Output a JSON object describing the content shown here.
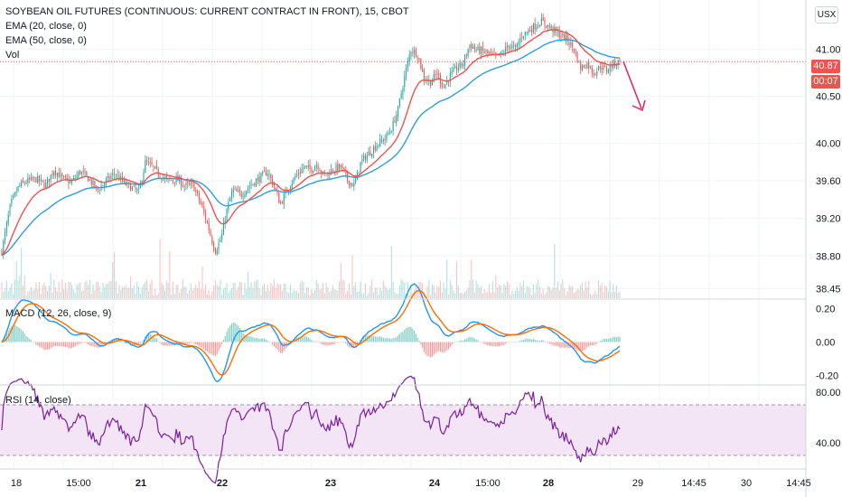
{
  "header": {
    "title": "SOYBEAN OIL FUTURES (CONTINUOUS: CURRENT CONTRACT IN FRONT), 15, CBOT",
    "ema20": "EMA (20, close, 0)",
    "ema50": "EMA (50, close, 0)",
    "vol": "Vol"
  },
  "currency_button": "USX",
  "price_badge": "40.87",
  "countdown_badge": "00:07",
  "colors": {
    "up": "#26a69a",
    "down": "#ef5350",
    "ema20": "#ef5350",
    "ema50": "#2f9ed8",
    "macd": "#2196f3",
    "signal": "#ff6d00",
    "rsi": "#7b1fa2",
    "rsi_band": "#f3e5f5"
  },
  "chart_data": [
    {
      "type": "candlestick",
      "panel": "price",
      "series": [
        {
          "name": "EMA (20, close, 0)"
        },
        {
          "name": "EMA (50, close, 0)"
        },
        {
          "name": "Vol"
        }
      ],
      "y_ticks": [
        "41.00",
        "40.50",
        "40.00",
        "39.60",
        "39.20",
        "38.80",
        "38.45"
      ],
      "y_tick_values": [
        41.0,
        40.5,
        40.0,
        39.6,
        39.2,
        38.8,
        38.45
      ],
      "ylim": [
        38.35,
        41.45
      ],
      "last_price": 40.87,
      "close_path": [
        [
          0,
          38.85
        ],
        [
          8,
          39.35
        ],
        [
          16,
          39.55
        ],
        [
          24,
          39.6
        ],
        [
          32,
          39.62
        ],
        [
          40,
          39.55
        ],
        [
          48,
          39.72
        ],
        [
          56,
          39.62
        ],
        [
          64,
          39.58
        ],
        [
          72,
          39.7
        ],
        [
          80,
          39.62
        ],
        [
          88,
          39.5
        ],
        [
          96,
          39.6
        ],
        [
          104,
          39.68
        ],
        [
          112,
          39.58
        ],
        [
          120,
          39.52
        ],
        [
          126,
          39.48
        ],
        [
          132,
          39.8
        ],
        [
          138,
          39.75
        ],
        [
          144,
          39.68
        ],
        [
          152,
          39.6
        ],
        [
          160,
          39.62
        ],
        [
          168,
          39.55
        ],
        [
          176,
          39.55
        ],
        [
          184,
          39.32
        ],
        [
          190,
          39.1
        ],
        [
          196,
          38.85
        ],
        [
          202,
          39.0
        ],
        [
          206,
          39.25
        ],
        [
          212,
          39.5
        ],
        [
          220,
          39.45
        ],
        [
          228,
          39.55
        ],
        [
          236,
          39.62
        ],
        [
          244,
          39.7
        ],
        [
          250,
          39.55
        ],
        [
          256,
          39.35
        ],
        [
          262,
          39.5
        ],
        [
          270,
          39.65
        ],
        [
          278,
          39.75
        ],
        [
          284,
          39.72
        ],
        [
          290,
          39.78
        ],
        [
          296,
          39.65
        ],
        [
          304,
          39.72
        ],
        [
          312,
          39.75
        ],
        [
          318,
          39.6
        ],
        [
          324,
          39.55
        ],
        [
          330,
          39.8
        ],
        [
          338,
          39.9
        ],
        [
          346,
          40.0
        ],
        [
          352,
          40.05
        ],
        [
          358,
          40.15
        ],
        [
          364,
          40.35
        ],
        [
          370,
          40.7
        ],
        [
          376,
          41.0
        ],
        [
          382,
          40.95
        ],
        [
          388,
          40.7
        ],
        [
          394,
          40.65
        ],
        [
          400,
          40.75
        ],
        [
          406,
          40.6
        ],
        [
          412,
          40.72
        ],
        [
          418,
          40.8
        ],
        [
          424,
          40.85
        ],
        [
          430,
          41.05
        ],
        [
          436,
          41.0
        ],
        [
          442,
          40.98
        ],
        [
          448,
          40.95
        ],
        [
          454,
          40.92
        ],
        [
          460,
          40.95
        ],
        [
          466,
          41.05
        ],
        [
          472,
          41.0
        ],
        [
          478,
          41.15
        ],
        [
          484,
          41.2
        ],
        [
          490,
          41.25
        ],
        [
          496,
          41.3
        ],
        [
          502,
          41.25
        ],
        [
          508,
          41.2
        ],
        [
          514,
          41.15
        ],
        [
          520,
          41.1
        ],
        [
          526,
          41.0
        ],
        [
          532,
          40.8
        ],
        [
          538,
          40.85
        ],
        [
          544,
          40.75
        ],
        [
          550,
          40.82
        ],
        [
          556,
          40.78
        ],
        [
          562,
          40.85
        ],
        [
          568,
          40.87
        ]
      ]
    },
    {
      "type": "line",
      "panel": "macd",
      "series": [
        {
          "name": "MACD (12, 26, close, 9)"
        }
      ],
      "y_ticks": [
        "0.20",
        "0.00",
        "-0.20"
      ],
      "y_tick_values": [
        0.2,
        0.0,
        -0.2
      ],
      "ylim": [
        -0.25,
        0.25
      ]
    },
    {
      "type": "line",
      "panel": "rsi",
      "series": [
        {
          "name": "RSI (14, close)"
        }
      ],
      "y_ticks": [
        "80.00",
        "40.00"
      ],
      "y_tick_values": [
        80,
        40
      ],
      "band": [
        30,
        70
      ],
      "ylim": [
        20,
        85
      ]
    }
  ],
  "time_axis": {
    "labels": [
      "18",
      "15:00",
      "21",
      "22",
      "23",
      "24",
      "15:00",
      "28",
      "29",
      "14:45",
      "30",
      "14:45"
    ],
    "bold": [
      false,
      false,
      true,
      true,
      true,
      true,
      false,
      true,
      false,
      false,
      false,
      false
    ]
  }
}
